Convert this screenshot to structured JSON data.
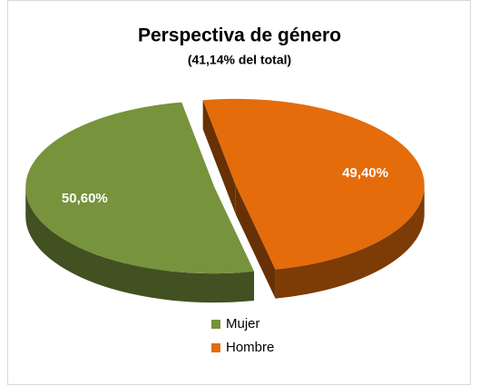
{
  "chart_data": {
    "type": "pie",
    "title": "Perspectiva de género",
    "subtitle": "(41,14% del total)",
    "categories": [
      "Mujer",
      "Hombre"
    ],
    "values": [
      50.6,
      49.4
    ],
    "value_labels": [
      "50,60%",
      "49,40%"
    ],
    "colors": [
      "#77933c",
      "#e46c0a"
    ],
    "legend": "bottom"
  }
}
